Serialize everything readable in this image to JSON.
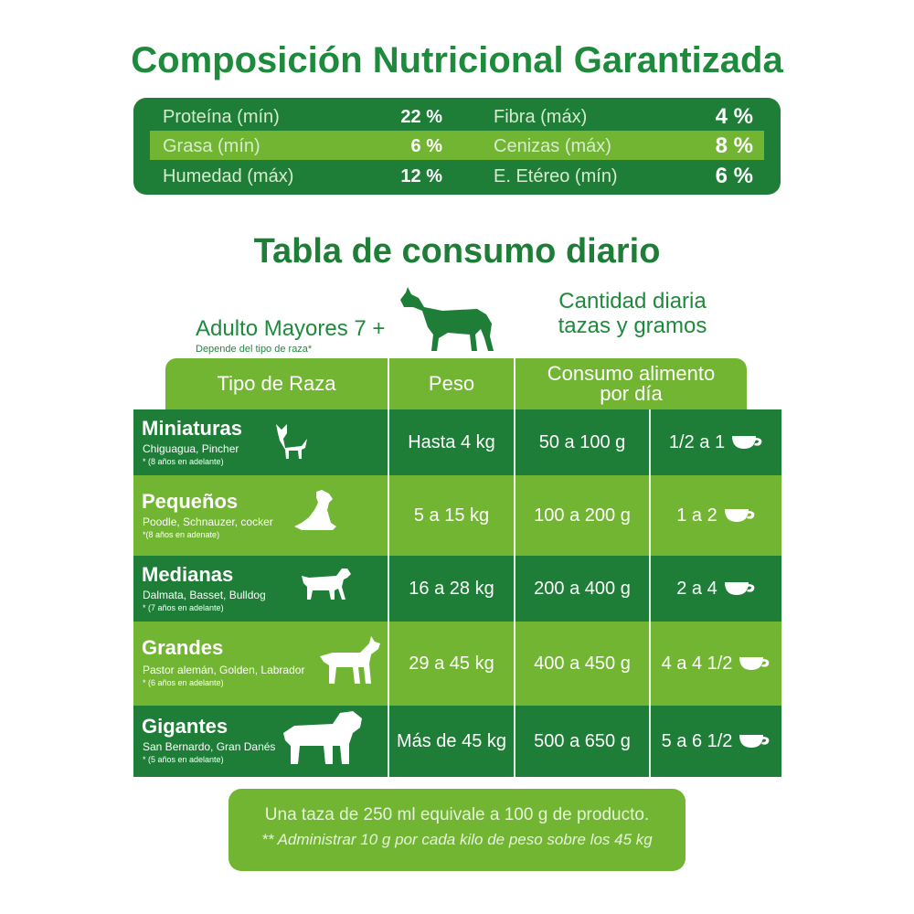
{
  "title": "Composición Nutricional Garantizada",
  "nutrition": [
    {
      "label": "Proteína (mín)",
      "value": "22 %",
      "label2": "Fibra (máx)",
      "value2": "4 %"
    },
    {
      "label": "Grasa (mín)",
      "value": "6 %",
      "label2": "Cenizas (máx)",
      "value2": "8 %"
    },
    {
      "label": "Humedad (máx)",
      "value": "12 %",
      "label2": "E. Etéreo (mín)",
      "value2": "6 %"
    }
  ],
  "table_title": "Tabla de consumo diario",
  "adult_label": "Adulto Mayores 7 +",
  "adult_sub": "Depende del tipo de raza*",
  "quantity_label_1": "Cantidad diaria",
  "quantity_label_2": "tazas y gramos",
  "headers": {
    "breed": "Tipo de Raza",
    "weight": "Peso",
    "consumption_1": "Consumo alimento",
    "consumption_2": "por día"
  },
  "rows": [
    {
      "name": "Miniaturas",
      "breeds": "Chiguagua, Pincher",
      "note": "* (8 años en adelante)",
      "weight": "Hasta 4 kg",
      "grams": "50 a 100 g",
      "cups": "1/2 a 1",
      "dog_icon": "chihuahua-icon"
    },
    {
      "name": "Pequeños",
      "breeds": "Poodle, Schnauzer, cocker",
      "note": "*(8 años en adenate)",
      "weight": "5 a 15 kg",
      "grams": "100 a 200 g",
      "cups": "1 a 2",
      "dog_icon": "small-dog-icon"
    },
    {
      "name": "Medianas",
      "breeds": "Dalmata, Basset, Bulldog",
      "note": "* (7 años en adelante)",
      "weight": "16 a 28 kg",
      "grams": "200 a 400 g",
      "cups": "2 a 4",
      "dog_icon": "medium-dog-icon"
    },
    {
      "name": "Grandes",
      "breeds": "Pastor alemán, Golden, Labrador",
      "note": "* (6 años en adelante)",
      "weight": "29 a 45 kg",
      "grams": "400 a 450 g",
      "cups": "4 a 4 1/2",
      "dog_icon": "large-dog-icon"
    },
    {
      "name": "Gigantes",
      "breeds": "San Bernardo, Gran Danés",
      "note": "* (5 años en adelante)",
      "weight": "Más de 45 kg",
      "grams": "500 a 650 g",
      "cups": "5 a 6 1/2",
      "dog_icon": "giant-dog-icon"
    }
  ],
  "footer": {
    "line1": "Una taza de 250 ml equivale a 100 g de producto.",
    "line2": "** Administrar 10 g por cada kilo de peso sobre los 45 kg"
  },
  "colors": {
    "dark_green": "#1e7d36",
    "light_green": "#72b533",
    "title_green": "#1e8a3c"
  }
}
